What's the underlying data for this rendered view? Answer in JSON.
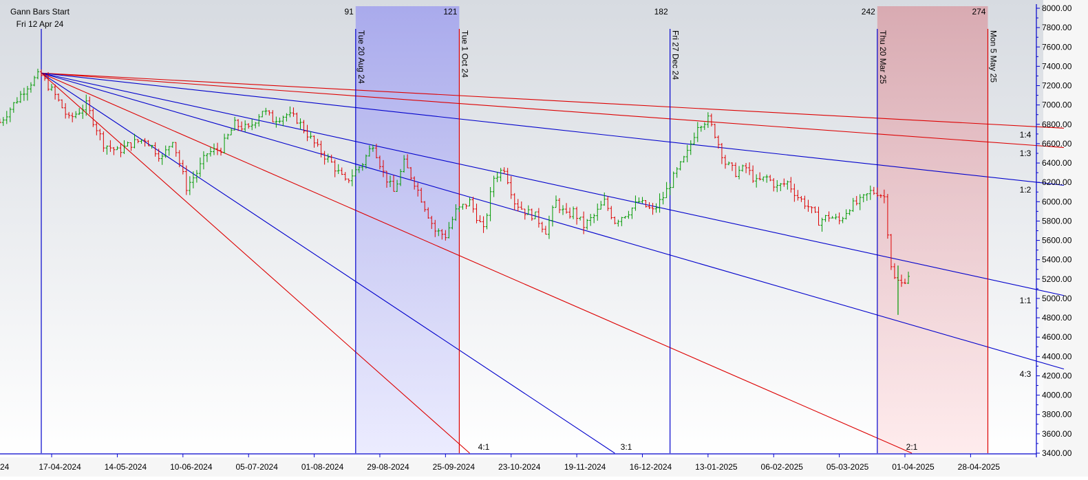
{
  "chart_data": {
    "type": "ohlc",
    "title": "",
    "start_label": {
      "line1": "Gann Bars Start",
      "line2": "Fri 12 Apr 24"
    },
    "y_axis": {
      "position": "right",
      "ylim": [
        3400,
        8000
      ],
      "ticks": [
        "3400.00",
        "3600.00",
        "3800.00",
        "4000.00",
        "4200.00",
        "4400.00",
        "4600.00",
        "4800.00",
        "5000.00",
        "5200.00",
        "5400.00",
        "5600.00",
        "5800.00",
        "6000.00",
        "6200.00",
        "6400.00",
        "6600.00",
        "6800.00",
        "7000.00",
        "7200.00",
        "7400.00",
        "7600.00",
        "7800.00",
        "8000.00"
      ]
    },
    "x_axis": {
      "ticks": [
        {
          "bar": 3,
          "label": "17-04-2024"
        },
        {
          "bar": 22,
          "label": "14-05-2024"
        },
        {
          "bar": 41,
          "label": "10-06-2024"
        },
        {
          "bar": 60,
          "label": "05-07-2024"
        },
        {
          "bar": 79,
          "label": "01-08-2024"
        },
        {
          "bar": 98,
          "label": "29-08-2024"
        },
        {
          "bar": 117,
          "label": "25-09-2024"
        },
        {
          "bar": 136,
          "label": "23-10-2024"
        },
        {
          "bar": 155,
          "label": "19-11-2024"
        },
        {
          "bar": 174,
          "label": "16-12-2024"
        },
        {
          "bar": 193,
          "label": "13-01-2025"
        },
        {
          "bar": 212,
          "label": "06-02-2025"
        },
        {
          "bar": 231,
          "label": "05-03-2025"
        },
        {
          "bar": 250,
          "label": "01-04-2025"
        },
        {
          "bar": 269,
          "label": "28-04-2025"
        }
      ],
      "left_stub": "24"
    },
    "pivot": {
      "bar": 0,
      "price": 7330
    },
    "time_markers": [
      {
        "bar": 0,
        "count": "",
        "date": "",
        "color": "#0000cc"
      },
      {
        "bar": 91,
        "count": "91",
        "date": "Tue 20 Aug 24",
        "color": "#0000cc"
      },
      {
        "bar": 121,
        "count": "121",
        "date": "Tue 1 Oct 24",
        "color": "#dd0000"
      },
      {
        "bar": 182,
        "count": "182",
        "date": "Fri 27 Dec 24",
        "color": "#0000cc"
      },
      {
        "bar": 242,
        "count": "242",
        "date": "Thu 20 Mar 25",
        "color": "#0000cc"
      },
      {
        "bar": 274,
        "count": "274",
        "date": "Mon 5 May 25",
        "color": "#dd0000"
      }
    ],
    "zones": [
      {
        "from_bar": 91,
        "to_bar": 121,
        "color": "#9a9af0"
      },
      {
        "from_bar": 242,
        "to_bar": 274,
        "color": "#f2aab0"
      }
    ],
    "fan_lines": [
      {
        "label": "1:4",
        "end_bar": 300,
        "end_price": 6760,
        "color": "#dd0000"
      },
      {
        "label": "1:3",
        "end_bar": 300,
        "end_price": 6560,
        "color": "#dd0000"
      },
      {
        "label": "1:2",
        "end_bar": 300,
        "end_price": 6170,
        "color": "#0000cc"
      },
      {
        "label": "1:1",
        "end_bar": 300,
        "end_price": 5030,
        "color": "#0000cc"
      },
      {
        "label": "4:3",
        "end_bar": 300,
        "end_price": 4270,
        "color": "#0000cc"
      },
      {
        "label": "2:1",
        "end_bar": 252,
        "end_price": 3400,
        "color": "#dd0000"
      },
      {
        "label": "3:1",
        "end_bar": 166,
        "end_price": 3400,
        "color": "#0000cc"
      },
      {
        "label": "4:1",
        "end_bar": 124,
        "end_price": 3400,
        "color": "#dd0000"
      }
    ],
    "price_path": [
      [
        -12,
        6820
      ],
      [
        -4,
        7200
      ],
      [
        -1,
        7300
      ],
      [
        0,
        7300
      ],
      [
        4,
        7100
      ],
      [
        8,
        6850
      ],
      [
        13,
        7000
      ],
      [
        18,
        6600
      ],
      [
        22,
        6520
      ],
      [
        26,
        6600
      ],
      [
        30,
        6650
      ],
      [
        35,
        6450
      ],
      [
        38,
        6650
      ],
      [
        40,
        6400
      ],
      [
        42,
        6150
      ],
      [
        45,
        6300
      ],
      [
        48,
        6500
      ],
      [
        52,
        6550
      ],
      [
        56,
        6800
      ],
      [
        60,
        6750
      ],
      [
        64,
        6950
      ],
      [
        67,
        6850
      ],
      [
        71,
        6900
      ],
      [
        74,
        6850
      ],
      [
        76,
        6750
      ],
      [
        80,
        6550
      ],
      [
        84,
        6400
      ],
      [
        88,
        6200
      ],
      [
        93,
        6400
      ],
      [
        96,
        6600
      ],
      [
        99,
        6300
      ],
      [
        102,
        6100
      ],
      [
        105,
        6400
      ],
      [
        108,
        6200
      ],
      [
        111,
        5950
      ],
      [
        114,
        5700
      ],
      [
        117,
        5650
      ],
      [
        120,
        5900
      ],
      [
        124,
        6000
      ],
      [
        128,
        5700
      ],
      [
        131,
        6250
      ],
      [
        134,
        6350
      ],
      [
        137,
        6000
      ],
      [
        140,
        5900
      ],
      [
        143,
        5850
      ],
      [
        146,
        5700
      ],
      [
        149,
        6000
      ],
      [
        152,
        5850
      ],
      [
        154,
        5900
      ],
      [
        157,
        5750
      ],
      [
        160,
        5850
      ],
      [
        163,
        6000
      ],
      [
        166,
        5800
      ],
      [
        170,
        5900
      ],
      [
        173,
        6000
      ],
      [
        177,
        5900
      ],
      [
        180,
        6050
      ],
      [
        183,
        6250
      ],
      [
        187,
        6500
      ],
      [
        190,
        6800
      ],
      [
        193,
        6850
      ],
      [
        195,
        6700
      ],
      [
        198,
        6400
      ],
      [
        201,
        6300
      ],
      [
        204,
        6350
      ],
      [
        207,
        6200
      ],
      [
        210,
        6250
      ],
      [
        213,
        6150
      ],
      [
        216,
        6200
      ],
      [
        219,
        6050
      ],
      [
        222,
        5950
      ],
      [
        225,
        5800
      ],
      [
        228,
        5850
      ],
      [
        231,
        5800
      ],
      [
        234,
        5950
      ],
      [
        237,
        6000
      ],
      [
        240,
        6100
      ],
      [
        242,
        6100
      ],
      [
        244,
        6050
      ],
      [
        245,
        5700
      ],
      [
        246,
        5350
      ],
      [
        247,
        5200
      ],
      [
        249,
        5150
      ],
      [
        251,
        5250
      ]
    ],
    "wick_spike": {
      "bar": 248,
      "low": 4830,
      "high": 5340
    }
  }
}
